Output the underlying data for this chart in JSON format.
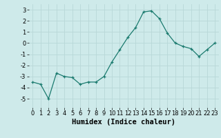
{
  "x": [
    0,
    1,
    2,
    3,
    4,
    5,
    6,
    7,
    8,
    9,
    10,
    11,
    12,
    13,
    14,
    15,
    16,
    17,
    18,
    19,
    20,
    21,
    22,
    23
  ],
  "y": [
    -3.5,
    -3.7,
    -5.0,
    -2.7,
    -3.0,
    -3.1,
    -3.7,
    -3.5,
    -3.5,
    -3.0,
    -1.7,
    -0.6,
    0.5,
    1.4,
    2.8,
    2.9,
    2.2,
    0.9,
    0.0,
    -0.3,
    -0.5,
    -1.2,
    -0.6,
    0.0
  ],
  "xlabel": "Humidex (Indice chaleur)",
  "ylim": [
    -5.8,
    3.5
  ],
  "xlim": [
    -0.5,
    23.5
  ],
  "yticks": [
    -5,
    -4,
    -3,
    -2,
    -1,
    0,
    1,
    2,
    3
  ],
  "xticks": [
    0,
    1,
    2,
    3,
    4,
    5,
    6,
    7,
    8,
    9,
    10,
    11,
    12,
    13,
    14,
    15,
    16,
    17,
    18,
    19,
    20,
    21,
    22,
    23
  ],
  "line_color": "#1a7a6e",
  "marker_color": "#1a7a6e",
  "bg_color": "#ceeaea",
  "grid_color": "#b8d8d8",
  "tick_label_fontsize": 6.0,
  "xlabel_fontsize": 7.5
}
